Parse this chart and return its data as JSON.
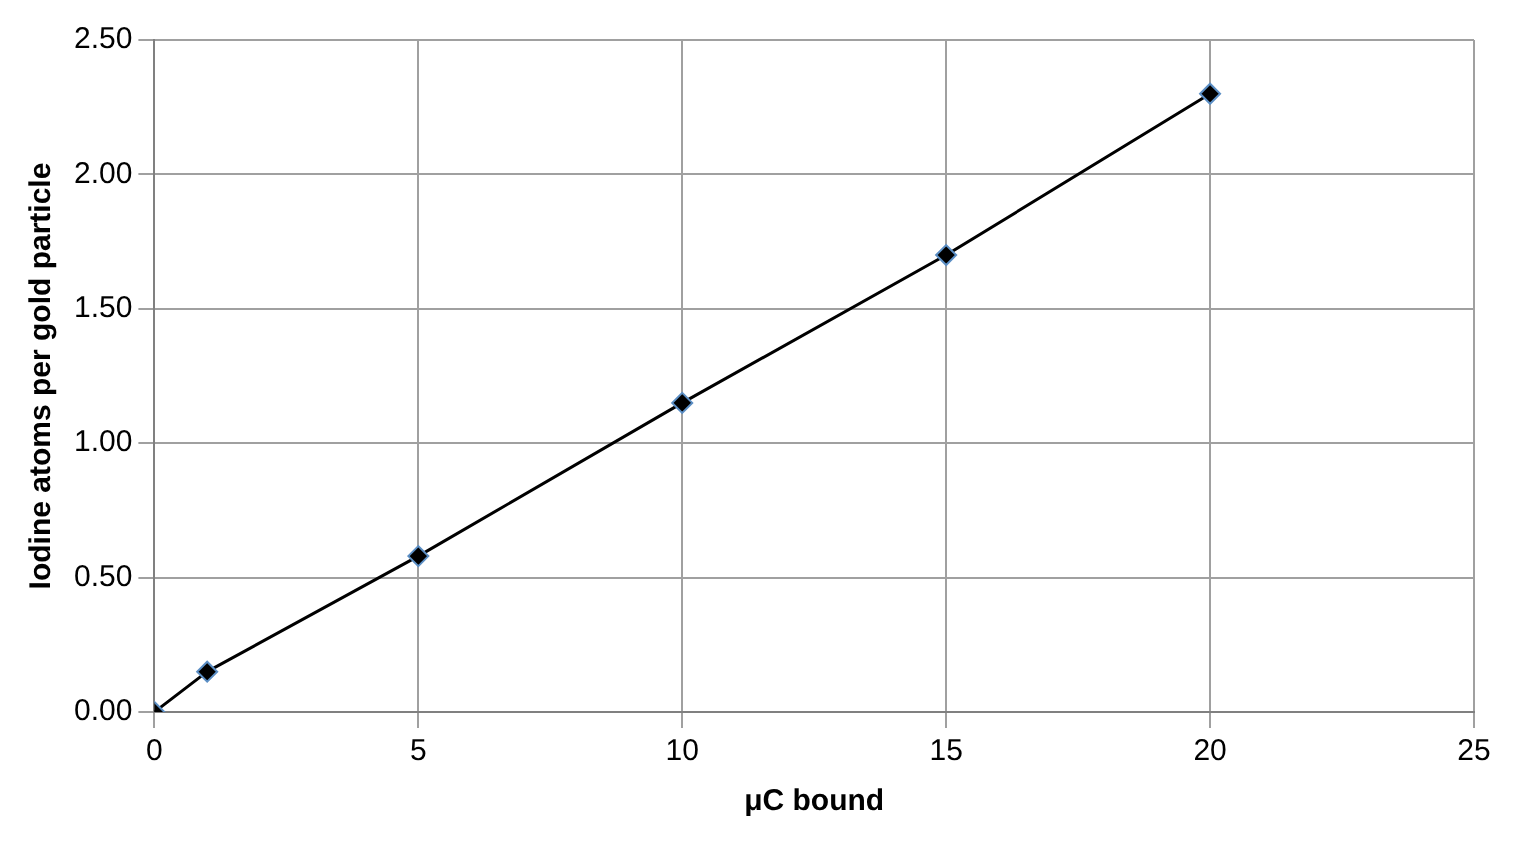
{
  "chart_data": {
    "type": "line",
    "xlabel": "μC bound",
    "ylabel": "Iodine atoms per gold particle",
    "x": [
      0,
      1,
      5,
      10,
      15,
      20
    ],
    "series": [
      {
        "color": "#000000",
        "values": [
          0,
          0.15,
          0.58,
          1.15,
          1.7,
          2.3
        ]
      }
    ],
    "xlim": [
      0,
      25
    ],
    "xticks": [
      0,
      5,
      10,
      15,
      20,
      25
    ],
    "ylim": [
      0,
      2.5
    ],
    "yticks": [
      {
        "value": 0,
        "label": "0.00"
      },
      {
        "value": 0.5,
        "label": "0.50"
      },
      {
        "value": 1,
        "label": "1.00"
      },
      {
        "value": 1.5,
        "label": "1.50"
      },
      {
        "value": 2,
        "label": "2.00"
      },
      {
        "value": 2.5,
        "label": "2.50"
      }
    ],
    "grid": true,
    "legend": false,
    "marker": "diamond",
    "line_style": "solid"
  }
}
